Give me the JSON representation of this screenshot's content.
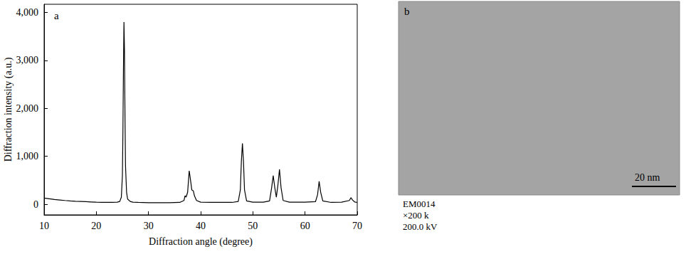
{
  "chart_data": {
    "type": "line",
    "panel": "a",
    "x_label": "Diffraction angle (degree)",
    "y_label": "Diffraction intensity (a.u.)",
    "x": [
      10,
      11,
      12,
      13,
      14,
      15,
      16,
      17,
      18,
      19,
      20,
      21,
      22,
      23,
      24,
      24.5,
      24.8,
      25.0,
      25.1,
      25.2,
      25.3,
      25.4,
      25.5,
      25.6,
      25.8,
      26.0,
      26.5,
      27,
      28,
      30,
      32,
      34,
      36,
      36.8,
      37.0,
      37.2,
      37.5,
      37.8,
      38.0,
      38.3,
      38.6,
      38.8,
      39.2,
      40,
      42,
      44,
      46,
      47.2,
      47.6,
      47.8,
      48.0,
      48.2,
      48.4,
      48.8,
      50,
      52,
      53.2,
      53.6,
      53.9,
      54.2,
      54.5,
      54.8,
      55.1,
      55.4,
      55.8,
      57,
      60,
      62,
      62.4,
      62.7,
      63.0,
      63.4,
      65,
      67,
      68.5,
      68.8,
      69.1,
      69.5,
      70
    ],
    "values": [
      130,
      115,
      100,
      90,
      80,
      72,
      65,
      60,
      55,
      50,
      45,
      42,
      40,
      40,
      45,
      60,
      150,
      600,
      1500,
      2800,
      3800,
      3200,
      1800,
      800,
      250,
      110,
      60,
      45,
      40,
      35,
      35,
      35,
      40,
      80,
      180,
      150,
      250,
      700,
      550,
      300,
      280,
      180,
      80,
      45,
      40,
      40,
      40,
      60,
      300,
      900,
      1270,
      900,
      300,
      70,
      45,
      45,
      70,
      350,
      600,
      350,
      150,
      400,
      730,
      350,
      80,
      45,
      45,
      55,
      200,
      480,
      250,
      70,
      40,
      45,
      80,
      140,
      90,
      50,
      40
    ],
    "color": "#000000",
    "xlim": [
      10,
      70
    ],
    "xticks": [
      10,
      20,
      30,
      40,
      50,
      60,
      70
    ],
    "ylim": [
      -220,
      4170
    ],
    "yticks": [
      0,
      1000,
      2000,
      3000,
      4000
    ],
    "grid": false
  },
  "image_panel": {
    "label": "b",
    "scale_bar": "20 nm",
    "caption": [
      "EM0014",
      "×200 k",
      "200.0 kV"
    ]
  }
}
